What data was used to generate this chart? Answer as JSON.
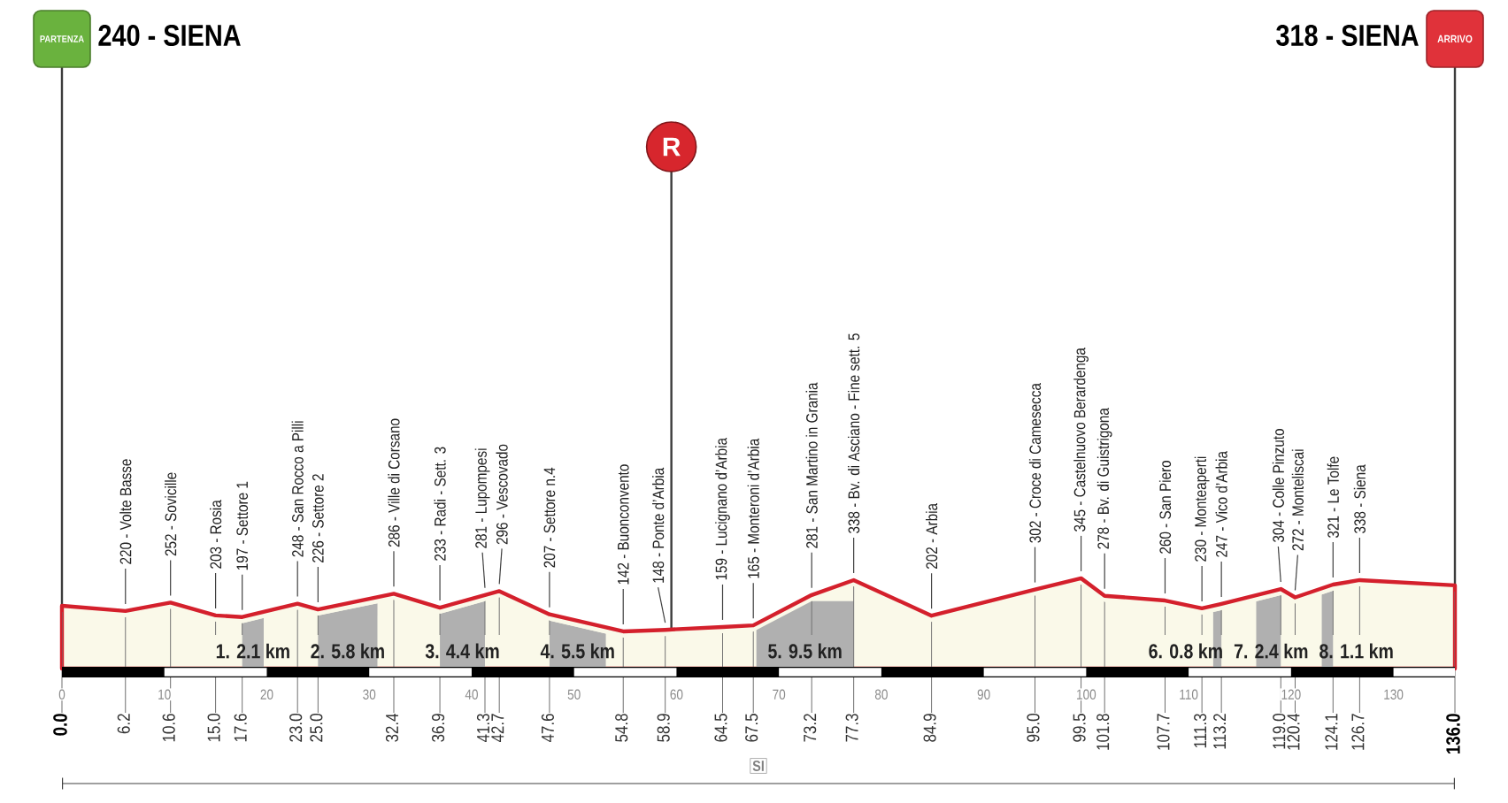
{
  "chart_data": {
    "type": "area",
    "x": [
      0,
      6.2,
      10.6,
      15,
      17.6,
      23,
      25,
      32.4,
      36.9,
      41.3,
      42.7,
      47.6,
      54.8,
      58.9,
      64.5,
      67.5,
      73.2,
      77.3,
      84.9,
      95,
      99.5,
      101.8,
      107.7,
      111.3,
      113.2,
      119,
      120.4,
      124.1,
      126.7,
      136
    ],
    "series": [
      {
        "color": "#faf9e9",
        "values": [
          240,
          220,
          252,
          203,
          197,
          248,
          226,
          286,
          233,
          281,
          296,
          207,
          142,
          148,
          159,
          165,
          281,
          338,
          202,
          302,
          345,
          278,
          260,
          230,
          247,
          304,
          272,
          321,
          338,
          318
        ],
        "value_labels": [
          null,
          "220 - Volte Basse",
          "252 - Sovicille",
          "203 - Rosia",
          "197 - Settore 1",
          "248 - San Rocco a Pilli",
          "226 - Settore 2",
          "286 - Ville di Corsano",
          "233 - Radi - Sett. 3",
          "281 - Lupompesi",
          "296 - Vescovado",
          "207 - Settore n.4",
          "142 - Buonconvento",
          "148 - Ponte d’Arbia",
          "159 - Lucignano d’Arbia",
          "165 - Monteroni d’Arbia",
          "281 - San Martino in Grania",
          "338 - Bv. di Asciano - Fine sett. 5",
          "202 - Arbia",
          "302 - Croce di Camesecca",
          "345 - Castelnuovo Berardenga",
          "278 - Bv. di Guistrigona",
          "260 - San Piero",
          "230 - Monteaperti",
          "247 - Vico d’Arbia",
          "304 - Colle Pinzuto",
          "272 - Monteliscai",
          "321 - Le Tolfe",
          "338 - Siena",
          null
        ]
      }
    ],
    "xlim": [
      0,
      136
    ],
    "xticks": [
      {
        "value": 0,
        "label": "0.0"
      },
      6.2,
      10.6,
      {
        "value": 15,
        "label": "15.0"
      },
      17.6,
      {
        "value": 23,
        "label": "23.0"
      },
      {
        "value": 25,
        "label": "25.0"
      },
      32.4,
      36.9,
      41.3,
      42.7,
      47.6,
      54.8,
      58.9,
      64.5,
      67.5,
      73.2,
      77.3,
      84.9,
      {
        "value": 95,
        "label": "95.0"
      },
      99.5,
      101.8,
      107.7,
      111.3,
      113.2,
      {
        "value": 119,
        "label": "119.0"
      },
      120.4,
      124.1,
      126.7,
      {
        "value": 136,
        "label": "136.0"
      }
    ],
    "x2lim": [
      0,
      136
    ],
    "x2ticks": [
      0,
      10,
      20,
      30,
      40,
      50,
      60,
      70,
      80,
      90,
      100,
      110,
      120,
      130
    ],
    "tick_labels": "x",
    "grid": "x",
    "bands": [
      {
        "axis": "x",
        "from": 17.6,
        "to": 19.7,
        "label": "1. 2.1 km",
        "color": "#b0b0b0"
      },
      {
        "axis": "x",
        "from": 25,
        "to": 30.8,
        "label": "2. 5.8 km",
        "color": "#b0b0b0"
      },
      {
        "axis": "x",
        "from": 36.9,
        "to": 41.3,
        "label": "3. 4.4 km",
        "color": "#b0b0b0"
      },
      {
        "axis": "x",
        "from": 47.6,
        "to": 53.1,
        "label": "4. 5.5 km",
        "color": "#b0b0b0"
      },
      {
        "axis": "x",
        "from": 67.8,
        "to": 77.3,
        "label": "5. 9.5 km",
        "color": "#b0b0b0"
      },
      {
        "axis": "x",
        "from": 112.4,
        "to": 113.2,
        "label": "6. 0.8 km",
        "color": "#b0b0b0"
      },
      {
        "axis": "x",
        "from": 116.6,
        "to": 119,
        "label": "7. 2.4 km",
        "color": "#b0b0b0"
      },
      {
        "axis": "x",
        "from": 123,
        "to": 124.1,
        "label": "8. 1.1 km",
        "color": "#b0b0b0"
      }
    ],
    "ref_lines": [
      {
        "axis": "x",
        "value": 0,
        "label": "PARTENZA"
      },
      {
        "axis": "x",
        "value": 59.5,
        "label": "R"
      },
      {
        "axis": "x",
        "value": 136,
        "label": "ARRIVO"
      }
    ],
    "annotations": [
      {
        "text": "240 - SIENA",
        "x": 0
      },
      {
        "text": "318 - SIENA",
        "x": 136
      },
      "SI"
    ]
  }
}
